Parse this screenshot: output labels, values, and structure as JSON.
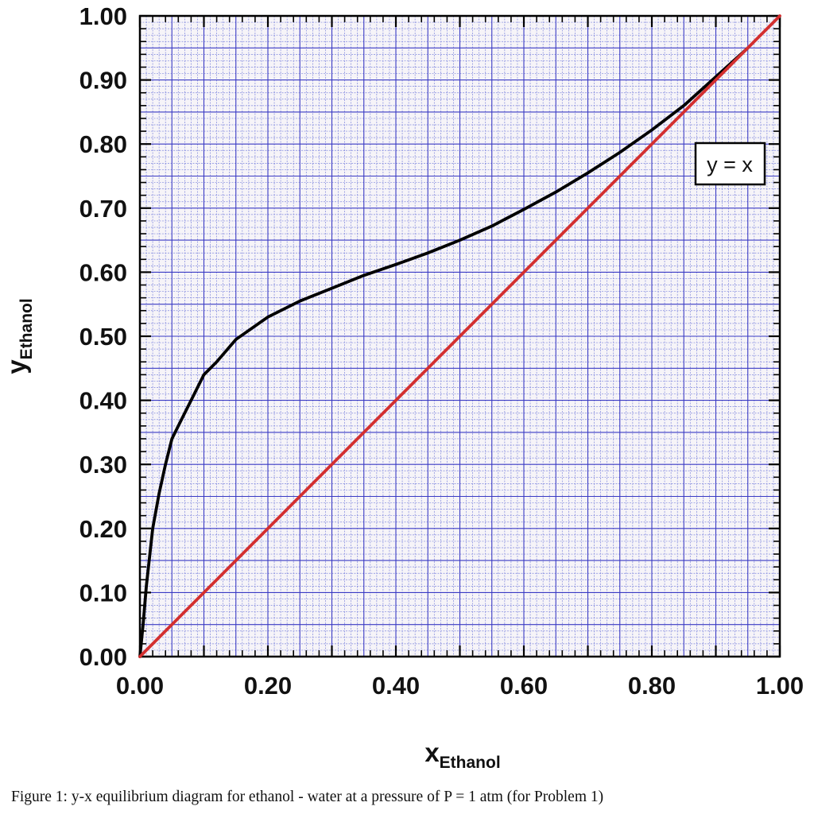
{
  "chart_data": {
    "type": "line",
    "xlabel": {
      "main": "x",
      "sub": "Ethanol"
    },
    "ylabel": {
      "main": "y",
      "sub": "Ethanol"
    },
    "xlim": [
      0,
      1
    ],
    "ylim": [
      0,
      1
    ],
    "x_ticks": [
      "0.00",
      "0.20",
      "0.40",
      "0.60",
      "0.80",
      "1.00"
    ],
    "y_ticks": [
      "0.00",
      "0.10",
      "0.20",
      "0.30",
      "0.40",
      "0.50",
      "0.60",
      "0.70",
      "0.80",
      "0.90",
      "1.00"
    ],
    "grid": true,
    "series": [
      {
        "color": "#000000",
        "x": [
          0,
          0.005,
          0.01,
          0.02,
          0.03,
          0.04,
          0.05,
          0.06,
          0.08,
          0.1,
          0.12,
          0.15,
          0.2,
          0.25,
          0.3,
          0.35,
          0.4,
          0.45,
          0.5,
          0.55,
          0.6,
          0.65,
          0.7,
          0.75,
          0.8,
          0.85,
          0.9,
          0.95
        ],
        "y": [
          0,
          0.05,
          0.11,
          0.2,
          0.255,
          0.3,
          0.34,
          0.36,
          0.4,
          0.44,
          0.46,
          0.495,
          0.53,
          0.555,
          0.575,
          0.595,
          0.612,
          0.63,
          0.65,
          0.672,
          0.698,
          0.725,
          0.755,
          0.787,
          0.822,
          0.86,
          0.905,
          0.95
        ]
      },
      {
        "name": "y = x",
        "color": "#d32f2f",
        "x": [
          0,
          1
        ],
        "y": [
          0,
          1
        ]
      }
    ],
    "legend": {
      "label": "y = x",
      "position": "top-right"
    }
  },
  "caption": "Figure 1: y-x equilibrium diagram for ethanol - water at a pressure of P = 1 atm (for Problem 1)"
}
